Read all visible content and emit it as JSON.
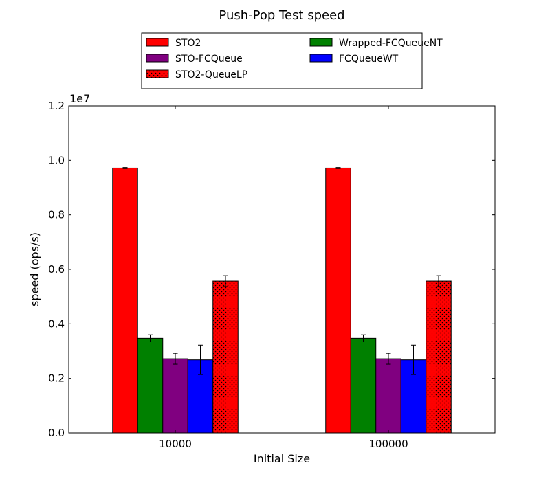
{
  "chart_data": {
    "type": "bar",
    "title": "Push-Pop Test speed",
    "xlabel": "Initial Size",
    "ylabel": "speed (ops/s)",
    "y_multiplier_label": "1e7",
    "categories": [
      "10000",
      "100000"
    ],
    "ylim": [
      0,
      1.2
    ],
    "yticks": [
      "0.0",
      "0.2",
      "0.4",
      "0.6",
      "0.8",
      "1.0",
      "1.2"
    ],
    "legend_position": "top-center",
    "legend_columns": 2,
    "series": [
      {
        "name": "STO2",
        "values": [
          0.972,
          0.972
        ],
        "errors": [
          0.002,
          0.002
        ],
        "color": "#ff0000",
        "pattern": "solid"
      },
      {
        "name": "Wrapped-FCQueueNT",
        "values": [
          0.347,
          0.347
        ],
        "errors": [
          0.013,
          0.013
        ],
        "color": "#008000",
        "pattern": "solid"
      },
      {
        "name": "STO-FCQueue",
        "values": [
          0.272,
          0.272
        ],
        "errors": [
          0.02,
          0.02
        ],
        "color": "#800080",
        "pattern": "solid"
      },
      {
        "name": "FCQueueWT",
        "values": [
          0.268,
          0.268
        ],
        "errors": [
          0.054,
          0.054
        ],
        "color": "#0000ff",
        "pattern": "solid"
      },
      {
        "name": "STO2-QueueLP",
        "values": [
          0.557,
          0.557
        ],
        "errors": [
          0.02,
          0.02
        ],
        "color": "#ff0000",
        "pattern": "dots"
      }
    ]
  }
}
